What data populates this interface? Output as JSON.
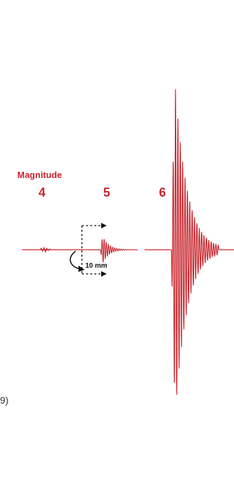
{
  "labels": {
    "heading": "Magnitude",
    "magnitudes": [
      "4",
      "5",
      "6"
    ],
    "scale": "10 mm",
    "edge_text": "9)"
  },
  "colors": {
    "waveform": "#c8242c",
    "annotation": "#111111",
    "text_red": "#c8242c"
  },
  "icons": [
    "dashed-bracket-arrow-icon",
    "curved-arrow-icon"
  ]
}
